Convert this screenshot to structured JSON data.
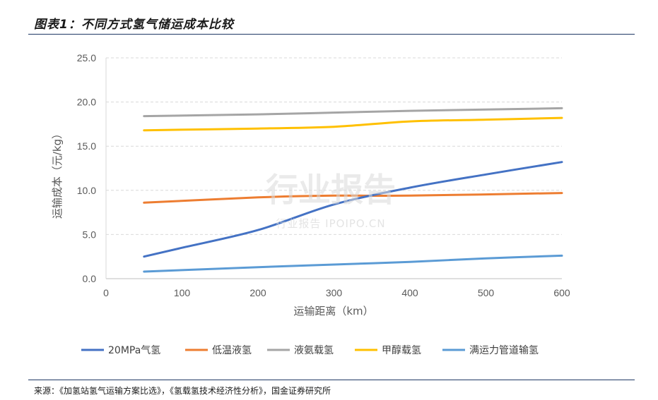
{
  "title": "图表1：不同方式氢气储运成本比较",
  "source": "来源：《加氢站氢气运输方案比选》，《氢载氢技术经济性分析》，国金证券研究所",
  "watermark": {
    "main": "行业报告",
    "sub": "行业报告 IPOIPO.CN"
  },
  "chart_data": {
    "type": "line",
    "xlabel": "运输距离（km）",
    "ylabel": "运输成本（元/kg）",
    "xlim": [
      0,
      600
    ],
    "ylim": [
      0,
      25
    ],
    "xticks": [
      0,
      100,
      200,
      300,
      400,
      500,
      600
    ],
    "yticks": [
      "0.0",
      "5.0",
      "10.0",
      "15.0",
      "20.0",
      "25.0"
    ],
    "grid": "horizontal-dashed",
    "legend_position": "bottom",
    "series": [
      {
        "name": "20MPa气氢",
        "color": "#4472c4",
        "points": [
          [
            50,
            2.5
          ],
          [
            100,
            3.5
          ],
          [
            200,
            5.5
          ],
          [
            300,
            8.4
          ],
          [
            400,
            10.3
          ],
          [
            500,
            11.8
          ],
          [
            600,
            13.2
          ]
        ]
      },
      {
        "name": "低温液氢",
        "color": "#ed7d31",
        "points": [
          [
            50,
            8.6
          ],
          [
            200,
            9.2
          ],
          [
            300,
            9.4
          ],
          [
            400,
            9.4
          ],
          [
            600,
            9.7
          ]
        ]
      },
      {
        "name": "液氨载氢",
        "color": "#a5a5a5",
        "points": [
          [
            50,
            18.4
          ],
          [
            200,
            18.6
          ],
          [
            300,
            18.8
          ],
          [
            400,
            19.0
          ],
          [
            600,
            19.3
          ]
        ]
      },
      {
        "name": "甲醇载氢",
        "color": "#ffc000",
        "points": [
          [
            50,
            16.8
          ],
          [
            200,
            17.0
          ],
          [
            300,
            17.2
          ],
          [
            400,
            17.8
          ],
          [
            500,
            18.0
          ],
          [
            600,
            18.2
          ]
        ]
      },
      {
        "name": "满运力管道输氢",
        "color": "#5b9bd5",
        "points": [
          [
            50,
            0.8
          ],
          [
            200,
            1.3
          ],
          [
            300,
            1.6
          ],
          [
            400,
            1.9
          ],
          [
            500,
            2.3
          ],
          [
            600,
            2.6
          ]
        ]
      }
    ]
  }
}
